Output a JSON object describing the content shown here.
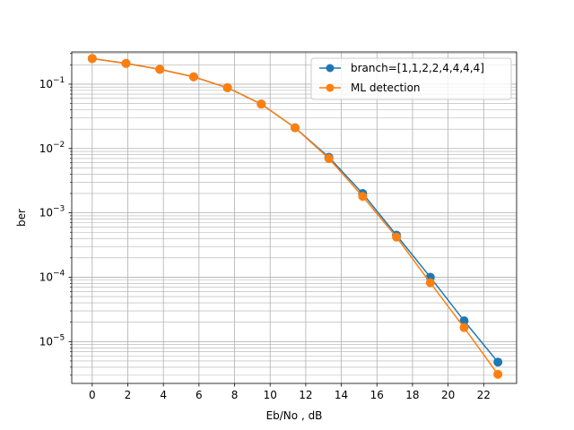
{
  "chart_data": {
    "type": "line",
    "xlabel": "Eb/No , dB",
    "ylabel": "ber",
    "xlim": [
      -1.15,
      23.85
    ],
    "ylim_log10": [
      -5.65,
      -0.5
    ],
    "yscale": "log",
    "x_ticks": [
      "0",
      "2",
      "4",
      "6",
      "8",
      "10",
      "12",
      "14",
      "16",
      "18",
      "20",
      "22"
    ],
    "y_ticks": [
      {
        "value": 0.1,
        "base": "10",
        "exp": "−1"
      },
      {
        "value": 0.01,
        "base": "10",
        "exp": "−2"
      },
      {
        "value": 0.001,
        "base": "10",
        "exp": "−3"
      },
      {
        "value": 0.0001,
        "base": "10",
        "exp": "−4"
      },
      {
        "value": 1e-05,
        "base": "10",
        "exp": "−5"
      }
    ],
    "grid": "major and minor",
    "legend_position": "top-right",
    "x": [
      0,
      1.9,
      3.8,
      5.7,
      7.6,
      9.5,
      11.4,
      13.3,
      15.2,
      17.1,
      19.0,
      20.9,
      22.8
    ],
    "series": [
      {
        "name": "branch=[1,1,2,2,4,4,4,4]",
        "color": "#1f77b4",
        "values": [
          0.25,
          0.21,
          0.17,
          0.13,
          0.088,
          0.049,
          0.021,
          0.0073,
          0.002,
          0.00045,
          0.0001,
          2.1e-05,
          4.8e-06
        ]
      },
      {
        "name": "ML detection",
        "color": "#ff7f0e",
        "values": [
          0.25,
          0.21,
          0.17,
          0.13,
          0.088,
          0.049,
          0.021,
          0.007,
          0.0018,
          0.00042,
          8.2e-05,
          1.65e-05,
          3.1e-06
        ]
      }
    ]
  }
}
